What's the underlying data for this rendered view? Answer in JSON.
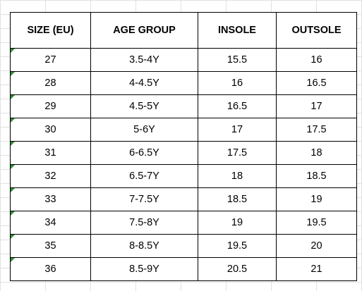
{
  "table": {
    "headers": [
      "SIZE (EU)",
      "AGE GROUP",
      "INSOLE",
      "OUTSOLE"
    ],
    "rows": [
      [
        "27",
        "3.5-4Y",
        "15.5",
        "16"
      ],
      [
        "28",
        "4-4.5Y",
        "16",
        "16.5"
      ],
      [
        "29",
        "4.5-5Y",
        "16.5",
        "17"
      ],
      [
        "30",
        "5-6Y",
        "17",
        "17.5"
      ],
      [
        "31",
        "6-6.5Y",
        "17.5",
        "18"
      ],
      [
        "32",
        "6.5-7Y",
        "18",
        "18.5"
      ],
      [
        "33",
        "7-7.5Y",
        "18.5",
        "19"
      ],
      [
        "34",
        "7.5-8Y",
        "19",
        "19.5"
      ],
      [
        "35",
        "8-8.5Y",
        "19.5",
        "20"
      ],
      [
        "36",
        "8.5-9Y",
        "20.5",
        "21"
      ]
    ]
  },
  "colors": {
    "gridline": "#e1e1e1",
    "border": "#000000",
    "error_indicator": "#2e8b32"
  },
  "icons": {
    "cell_indicator": "number-stored-as-text-indicator-icon"
  }
}
